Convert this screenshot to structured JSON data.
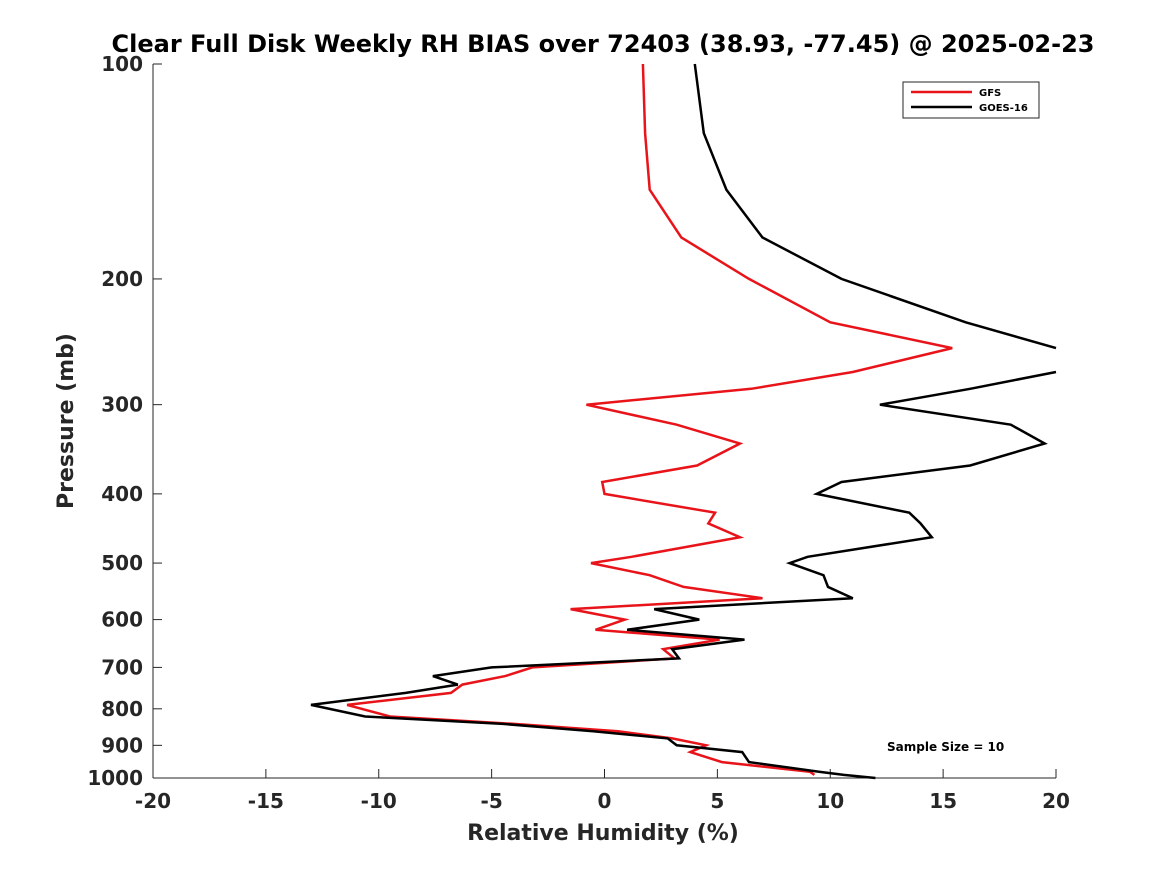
{
  "chart_data": {
    "type": "line",
    "title": "Clear Full Disk Weekly RH BIAS over 72403 (38.93, -77.45) @ 2025-02-23",
    "xlabel": "Relative Humidity (%)",
    "ylabel": "Pressure (mb)",
    "xlim": [
      -20,
      20
    ],
    "ylim": [
      100,
      1000
    ],
    "y_scale": "log",
    "y_reversed": true,
    "x_ticks": [
      -20,
      -15,
      -10,
      -5,
      0,
      5,
      10,
      15,
      20
    ],
    "y_ticks": [
      100,
      200,
      300,
      400,
      500,
      600,
      700,
      800,
      900,
      1000
    ],
    "grid": false,
    "legend_position": "top-right",
    "annotation": "Sample Size = 10",
    "series": [
      {
        "name": "GFS",
        "color": "#e8141a",
        "points": [
          [
            1.7,
            100
          ],
          [
            1.8,
            125
          ],
          [
            2.0,
            150
          ],
          [
            3.4,
            175
          ],
          [
            6.4,
            200
          ],
          [
            10.0,
            230
          ],
          [
            15.4,
            250
          ],
          [
            11.0,
            270
          ],
          [
            6.5,
            285
          ],
          [
            -0.8,
            300
          ],
          [
            3.2,
            320
          ],
          [
            6.0,
            340
          ],
          [
            4.1,
            365
          ],
          [
            -0.1,
            385
          ],
          [
            0.0,
            400
          ],
          [
            4.9,
            425
          ],
          [
            4.6,
            440
          ],
          [
            6.0,
            460
          ],
          [
            1.2,
            490
          ],
          [
            -0.6,
            500
          ],
          [
            2.0,
            520
          ],
          [
            3.5,
            540
          ],
          [
            7.0,
            560
          ],
          [
            -1.5,
            580
          ],
          [
            0.9,
            600
          ],
          [
            -0.4,
            620
          ],
          [
            5.1,
            640
          ],
          [
            2.6,
            660
          ],
          [
            3.1,
            680
          ],
          [
            -3.2,
            700
          ],
          [
            -4.4,
            720
          ],
          [
            -6.3,
            740
          ],
          [
            -6.8,
            760
          ],
          [
            -11.4,
            790
          ],
          [
            -9.5,
            820
          ],
          [
            -4.0,
            840
          ],
          [
            0.6,
            860
          ],
          [
            3.0,
            880
          ],
          [
            4.5,
            900
          ],
          [
            3.8,
            920
          ],
          [
            5.2,
            950
          ],
          [
            9.1,
            980
          ],
          [
            9.3,
            990
          ]
        ]
      },
      {
        "name": "GOES-16",
        "color": "#000000",
        "points": [
          [
            4.0,
            100
          ],
          [
            4.4,
            125
          ],
          [
            5.4,
            150
          ],
          [
            7.0,
            175
          ],
          [
            10.5,
            200
          ],
          [
            16.0,
            230
          ],
          [
            20.0,
            250
          ],
          [
            null,
            260
          ],
          [
            20.0,
            270
          ],
          [
            16.2,
            285
          ],
          [
            12.2,
            300
          ],
          [
            18.0,
            320
          ],
          [
            19.5,
            340
          ],
          [
            16.2,
            365
          ],
          [
            10.5,
            385
          ],
          [
            9.4,
            400
          ],
          [
            13.5,
            425
          ],
          [
            14.0,
            440
          ],
          [
            14.5,
            460
          ],
          [
            9.0,
            490
          ],
          [
            8.2,
            500
          ],
          [
            9.7,
            520
          ],
          [
            9.9,
            540
          ],
          [
            11.0,
            560
          ],
          [
            2.2,
            580
          ],
          [
            4.2,
            600
          ],
          [
            1.0,
            620
          ],
          [
            6.2,
            640
          ],
          [
            3.0,
            660
          ],
          [
            3.3,
            680
          ],
          [
            -5.0,
            700
          ],
          [
            -7.6,
            720
          ],
          [
            -6.5,
            740
          ],
          [
            -8.8,
            760
          ],
          [
            -13.0,
            790
          ],
          [
            -10.6,
            820
          ],
          [
            -4.5,
            840
          ],
          [
            -0.5,
            860
          ],
          [
            2.8,
            880
          ],
          [
            3.2,
            900
          ],
          [
            6.1,
            920
          ],
          [
            6.4,
            950
          ],
          [
            9.5,
            980
          ],
          [
            10.6,
            990
          ],
          [
            12.0,
            1000
          ]
        ]
      }
    ]
  }
}
